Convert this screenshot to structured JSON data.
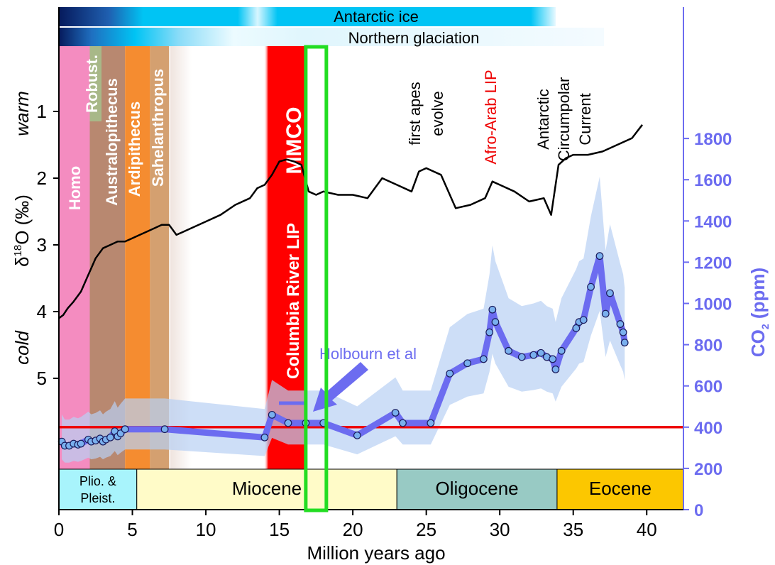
{
  "chart_data": {
    "type": "line",
    "xlabel": "Million years ago",
    "xlim": [
      0,
      42.5
    ],
    "x_ticks": [
      0,
      5,
      10,
      15,
      20,
      25,
      30,
      35,
      40
    ],
    "left_axis": {
      "label": "δ18O (‰)",
      "label_parts": [
        "δ",
        "18",
        "O (‰)"
      ],
      "ticks": [
        1,
        2,
        3,
        4,
        5
      ],
      "inverted": true,
      "warm_label": "warm",
      "cold_label": "cold"
    },
    "right_axis": {
      "label": "CO2 (ppm)",
      "label_parts": [
        "CO",
        "2",
        " (ppm)"
      ],
      "ticks": [
        0,
        200,
        400,
        600,
        800,
        1000,
        1200,
        1400,
        1600,
        1800
      ],
      "color": "#6c6cf0"
    },
    "ice_bars": [
      {
        "label": "Antarctic ice",
        "color": "#00c4f4"
      },
      {
        "label": "Northern glaciation",
        "color": "#00c4f4"
      }
    ],
    "hominin_bands": [
      {
        "label": "Homo",
        "start": 0,
        "end": 2.1,
        "color": "#f48cc0"
      },
      {
        "label": "Robust.",
        "start": 2.1,
        "end": 2.9,
        "color": "#a8b888"
      },
      {
        "label": "Australopithecus",
        "start": 2.1,
        "end": 4.5,
        "color": "#b88870"
      },
      {
        "label": "Ardipithecus",
        "start": 4.5,
        "end": 6.2,
        "color": "#f58c30"
      },
      {
        "label": "Sahelanthropus",
        "start": 6.2,
        "end": 7.5,
        "color": "#d4a070"
      }
    ],
    "mmco_label": "MMCO",
    "columbia_label": "Columbia River LIP",
    "annotations": {
      "apes": [
        "first apes",
        "evolve"
      ],
      "afro_arab": "Afro-Arab LIP",
      "acc": [
        "Antarctic",
        "Circumpolar",
        "Current"
      ],
      "holbourn": "Holbourn et al"
    },
    "epochs": [
      {
        "name": "Plio. &",
        "name2": "Pleist.",
        "start": 0,
        "end": 5.3,
        "color": "#a8f4fc"
      },
      {
        "name": "Miocene",
        "start": 5.3,
        "end": 23,
        "color": "#fffbc8"
      },
      {
        "name": "Oligocene",
        "start": 23,
        "end": 33.9,
        "color": "#98cac4"
      },
      {
        "name": "Eocene",
        "start": 33.9,
        "end": 42.5,
        "color": "#fcc700"
      }
    ],
    "co2_reference_line": 400,
    "highlight_range": [
      16.8,
      18.2
    ],
    "series": [
      {
        "name": "δ18O",
        "axis": "left",
        "color": "#000000",
        "x": [
          0,
          0.3,
          0.6,
          1,
          1.5,
          2,
          2.5,
          3,
          3.5,
          4,
          4.5,
          5,
          5.5,
          6,
          6.5,
          7,
          7.5,
          8,
          9,
          10,
          11,
          12,
          13,
          13.5,
          14,
          14.5,
          15,
          15.5,
          16,
          16.5,
          17,
          17.5,
          18,
          19,
          20,
          21,
          22,
          23,
          24,
          24.5,
          25,
          26,
          27,
          28,
          29,
          29.5,
          30,
          31,
          32,
          33,
          33.5,
          34,
          34.5,
          35,
          36,
          37,
          38,
          39,
          39.7
        ],
        "values": [
          4.1,
          4.05,
          3.95,
          3.85,
          3.7,
          3.45,
          3.2,
          3.05,
          3.0,
          2.95,
          2.95,
          2.9,
          2.85,
          2.8,
          2.75,
          2.7,
          2.7,
          2.85,
          2.75,
          2.65,
          2.55,
          2.4,
          2.3,
          2.15,
          2.1,
          1.95,
          1.75,
          1.72,
          1.75,
          1.8,
          2.2,
          2.25,
          2.2,
          2.25,
          2.25,
          2.3,
          2.0,
          2.1,
          2.2,
          1.9,
          1.85,
          1.95,
          2.45,
          2.4,
          2.3,
          2.05,
          2.1,
          2.2,
          2.35,
          2.3,
          2.55,
          1.8,
          1.7,
          1.65,
          1.65,
          1.6,
          1.5,
          1.4,
          1.2
        ]
      },
      {
        "name": "CO2",
        "axis": "right",
        "color": "#6c6cf0",
        "x": [
          0.2,
          0.4,
          0.7,
          1,
          1.3,
          1.5,
          2,
          2.2,
          2.5,
          2.8,
          3,
          3.2,
          3.5,
          3.8,
          4,
          4.2,
          4.5,
          7.2,
          14,
          14.5,
          15.6,
          16.8,
          18,
          20.3,
          22.9,
          23.4,
          25.3,
          26.6,
          27.8,
          28.9,
          29.3,
          29.5,
          29.7,
          30.6,
          31.5,
          32.3,
          32.8,
          33.2,
          33.6,
          33.8,
          34.2,
          35.2,
          35.4,
          35.7,
          36.2,
          36.8,
          37.2,
          37.5,
          38.2,
          38.4,
          38.5
        ],
        "values": [
          330,
          310,
          310,
          320,
          315,
          320,
          340,
          330,
          335,
          345,
          330,
          340,
          350,
          380,
          355,
          370,
          390,
          390,
          350,
          460,
          420,
          420,
          420,
          360,
          470,
          420,
          420,
          660,
          710,
          730,
          860,
          970,
          910,
          770,
          740,
          750,
          760,
          740,
          730,
          680,
          770,
          880,
          910,
          920,
          1080,
          1230,
          950,
          1050,
          900,
          860,
          810
        ]
      }
    ]
  }
}
